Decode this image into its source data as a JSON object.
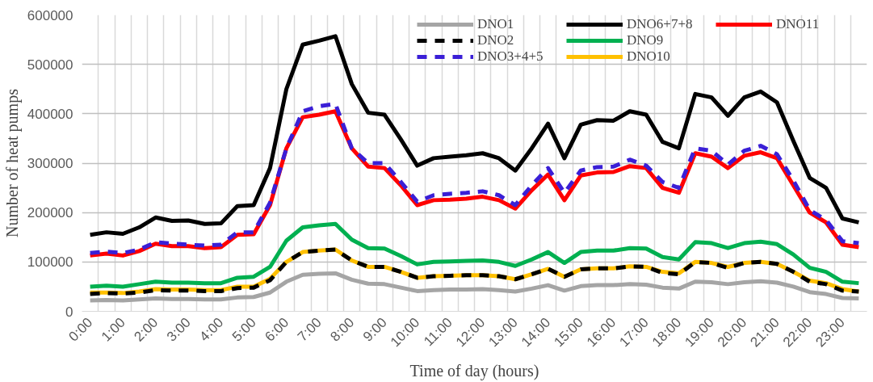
{
  "chart_data": {
    "type": "line",
    "xlabel": "Time of day (hours)",
    "ylabel": "Number of heat pumps",
    "categories": [
      "0:00",
      null,
      "1:00",
      null,
      "2:00",
      null,
      "3:00",
      null,
      "4:00",
      null,
      "5:00",
      null,
      "6:00",
      null,
      "7:00",
      null,
      "8:00",
      null,
      "9:00",
      null,
      "10:00",
      null,
      "11:00",
      null,
      "12:00",
      null,
      "13:00",
      null,
      "14:00",
      null,
      "15:00",
      null,
      "16:00",
      null,
      "17:00",
      null,
      "18:00",
      null,
      "19:00",
      null,
      "20:00",
      null,
      "21:00",
      null,
      "22:00",
      null,
      "23:00",
      null
    ],
    "ylim": [
      0,
      600000
    ],
    "yticks": [
      0,
      100000,
      200000,
      300000,
      400000,
      500000,
      600000
    ],
    "grid": true,
    "legend": "top right",
    "marker": "none",
    "series": [
      {
        "name": "DNO1",
        "color": "#a5a5a5",
        "line_style": "solid",
        "values": [
          22000,
          23000,
          22000,
          24000,
          26000,
          25000,
          25000,
          24000,
          24000,
          28000,
          29000,
          38000,
          60000,
          74000,
          76000,
          77000,
          64000,
          56000,
          55000,
          48000,
          41000,
          43000,
          44000,
          44000,
          45000,
          43000,
          40000,
          46000,
          53000,
          42000,
          51000,
          53000,
          53000,
          55000,
          54000,
          48000,
          46000,
          60000,
          59000,
          55000,
          59000,
          61000,
          58000,
          50000,
          39000,
          35000,
          27000,
          26000
        ]
      },
      {
        "name": "DNO2",
        "color": "#000000",
        "line_style": "dashed",
        "values": [
          35000,
          37000,
          36000,
          38000,
          43000,
          42000,
          42000,
          41000,
          41000,
          47000,
          48000,
          63000,
          100000,
          120000,
          123000,
          125000,
          103000,
          90000,
          90000,
          80000,
          68000,
          71000,
          72000,
          73000,
          73000,
          71000,
          65000,
          75000,
          86000,
          70000,
          85000,
          87000,
          87000,
          91000,
          90000,
          78000,
          75000,
          100000,
          98000,
          88000,
          98000,
          100000,
          96000,
          80000,
          60000,
          55000,
          42000,
          40000
        ]
      },
      {
        "name": "DNO3+4+5",
        "color": "#3a1fd6",
        "line_style": "dashed",
        "values": [
          118000,
          121000,
          118000,
          125000,
          140000,
          137000,
          135000,
          133000,
          135000,
          160000,
          160000,
          220000,
          330000,
          405000,
          415000,
          420000,
          330000,
          300000,
          300000,
          262000,
          222000,
          235000,
          238000,
          240000,
          243000,
          235000,
          215000,
          255000,
          290000,
          240000,
          285000,
          292000,
          293000,
          307000,
          295000,
          262000,
          250000,
          330000,
          325000,
          297000,
          325000,
          335000,
          318000,
          265000,
          205000,
          185000,
          142000,
          138000
        ]
      },
      {
        "name": "DNO6+7+8",
        "color": "#000000",
        "line_style": "solid",
        "values": [
          155000,
          160000,
          157000,
          170000,
          190000,
          183000,
          184000,
          177000,
          178000,
          213000,
          215000,
          290000,
          450000,
          540000,
          548000,
          557000,
          460000,
          402000,
          398000,
          348000,
          295000,
          310000,
          313000,
          316000,
          320000,
          310000,
          285000,
          330000,
          380000,
          310000,
          378000,
          387000,
          386000,
          405000,
          398000,
          343000,
          330000,
          440000,
          433000,
          396000,
          433000,
          445000,
          423000,
          345000,
          270000,
          250000,
          188000,
          180000
        ]
      },
      {
        "name": "DNO9",
        "color": "#00b050",
        "line_style": "solid",
        "values": [
          50000,
          52000,
          50000,
          55000,
          60000,
          58000,
          58000,
          57000,
          57000,
          68000,
          70000,
          90000,
          143000,
          170000,
          174000,
          177000,
          145000,
          128000,
          127000,
          112000,
          95000,
          100000,
          101000,
          102000,
          103000,
          100000,
          92000,
          105000,
          120000,
          98000,
          120000,
          123000,
          123000,
          128000,
          127000,
          110000,
          105000,
          140000,
          138000,
          128000,
          138000,
          141000,
          136000,
          115000,
          88000,
          80000,
          60000,
          57000
        ]
      },
      {
        "name": "DNO10",
        "color": "#ffc000",
        "line_style": "solid",
        "values": [
          38000,
          38000,
          37000,
          40000,
          45000,
          44000,
          44000,
          43000,
          43000,
          50000,
          50000,
          66000,
          100000,
          120000,
          123000,
          125000,
          103000,
          90000,
          90000,
          80000,
          68000,
          71000,
          72000,
          73000,
          73000,
          71000,
          65000,
          75000,
          86000,
          70000,
          85000,
          87000,
          87000,
          91000,
          90000,
          80000,
          77000,
          100000,
          98000,
          90000,
          98000,
          100000,
          96000,
          80000,
          62000,
          57000,
          45000,
          40000
        ]
      },
      {
        "name": "DNO11",
        "color": "#ff0000",
        "line_style": "solid",
        "values": [
          113000,
          117000,
          113000,
          122000,
          137000,
          132000,
          132000,
          128000,
          130000,
          155000,
          156000,
          215000,
          330000,
          393000,
          398000,
          405000,
          330000,
          293000,
          290000,
          255000,
          215000,
          225000,
          226000,
          228000,
          232000,
          225000,
          208000,
          245000,
          277000,
          225000,
          275000,
          281000,
          282000,
          294000,
          290000,
          250000,
          240000,
          320000,
          313000,
          290000,
          315000,
          322000,
          310000,
          255000,
          200000,
          180000,
          135000,
          130000
        ]
      }
    ]
  }
}
